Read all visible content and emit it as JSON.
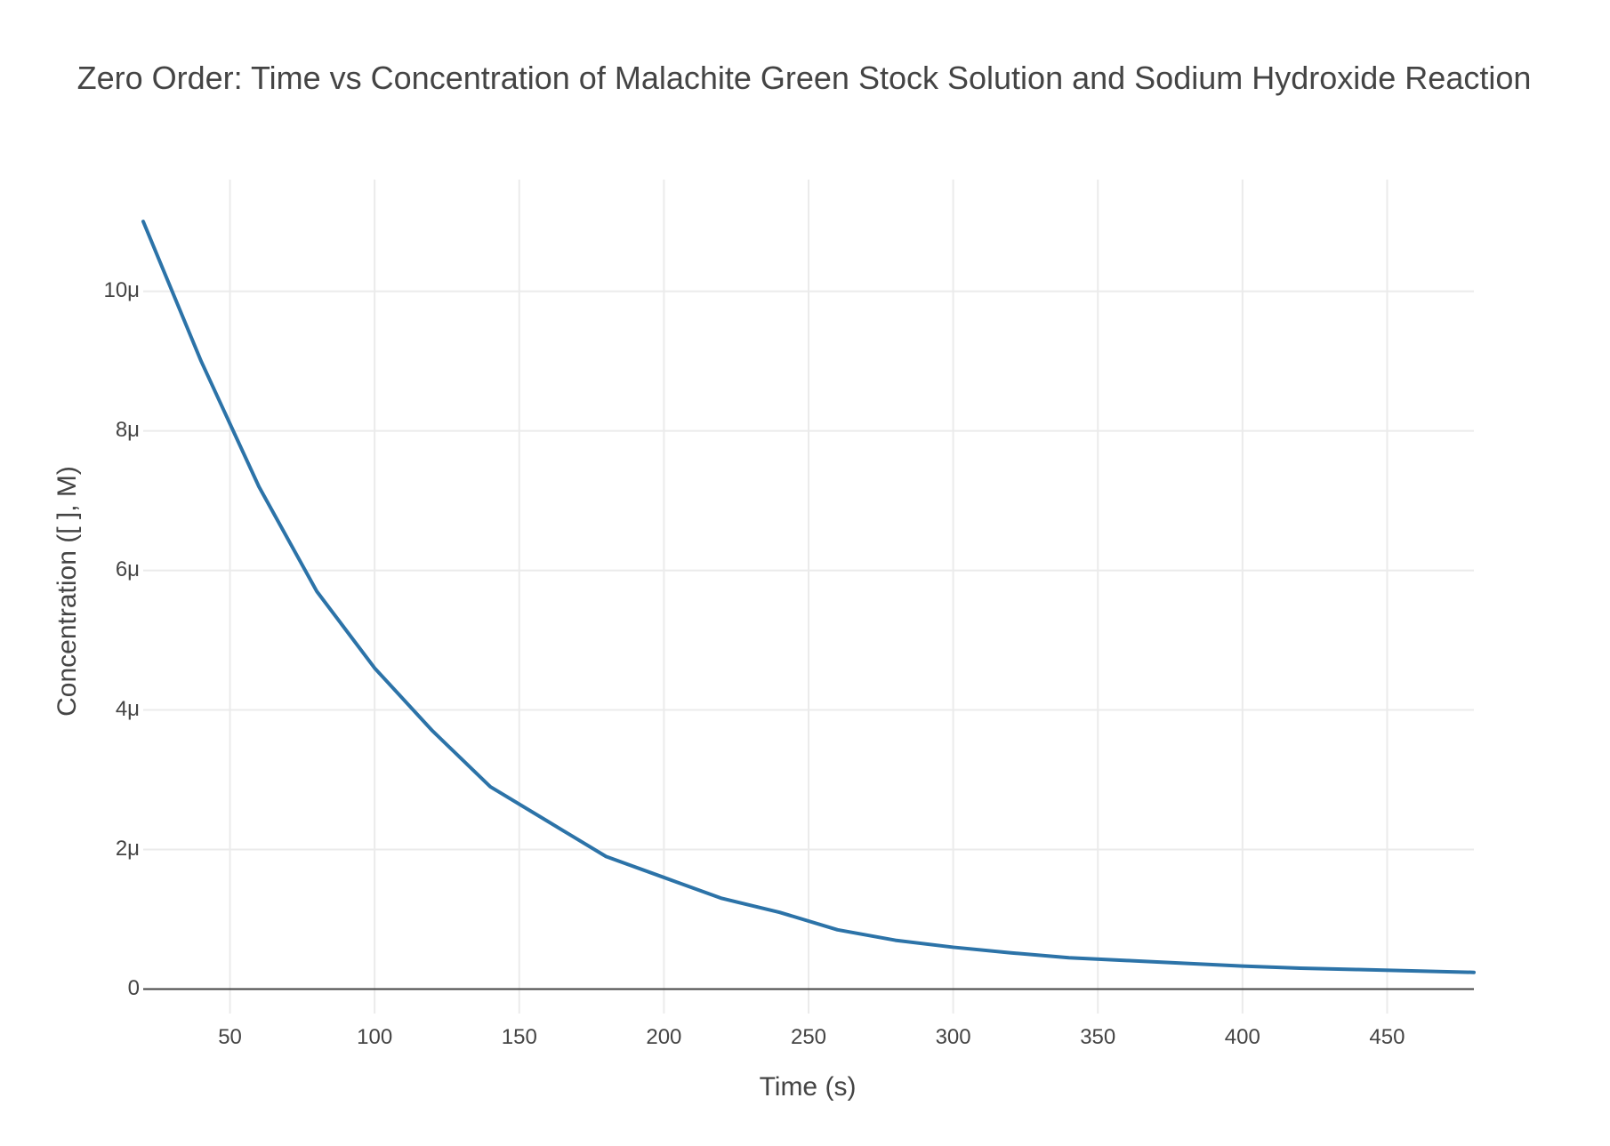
{
  "chart_data": {
    "type": "line",
    "title": "Zero Order: Time vs Concentration of Malachite Green Stock Solution and Sodium Hydroxide Reaction",
    "xlabel": "Time (s)",
    "ylabel": "Concentration ([ ], M)",
    "xlim": [
      20,
      480
    ],
    "ylim": [
      -3.5e-07,
      1.16e-05
    ],
    "x_ticks": [
      50,
      100,
      150,
      200,
      250,
      300,
      350,
      400,
      450
    ],
    "x_tick_labels": [
      "50",
      "100",
      "150",
      "200",
      "250",
      "300",
      "350",
      "400",
      "450"
    ],
    "y_ticks": [
      0,
      2e-06,
      4e-06,
      6e-06,
      8e-06,
      1e-05
    ],
    "y_tick_labels": [
      "0",
      "2μ",
      "4μ",
      "6μ",
      "8μ",
      "10μ"
    ],
    "grid": true,
    "legend": "none",
    "series": [
      {
        "color": "#2c73a8",
        "x": [
          20,
          40,
          60,
          80,
          100,
          120,
          140,
          160,
          180,
          200,
          220,
          240,
          260,
          280,
          300,
          320,
          340,
          360,
          380,
          400,
          420,
          440,
          460,
          480
        ],
        "y": [
          1.1e-05,
          9e-06,
          7.2e-06,
          5.7e-06,
          4.6e-06,
          3.7e-06,
          2.9e-06,
          2.4e-06,
          1.9e-06,
          1.6e-06,
          1.3e-06,
          1.1e-06,
          8.5e-07,
          7e-07,
          6e-07,
          5.2e-07,
          4.5e-07,
          4.1e-07,
          3.7e-07,
          3.3e-07,
          3e-07,
          2.8e-07,
          2.6e-07,
          2.4e-07
        ]
      }
    ]
  }
}
